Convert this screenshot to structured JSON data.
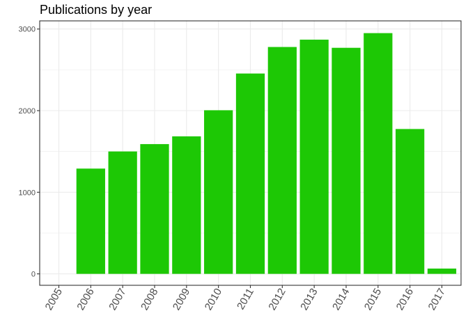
{
  "chart_data": {
    "type": "bar",
    "title": "Publications by year",
    "xlabel": "",
    "ylabel": "",
    "categories": [
      "2005",
      "2006",
      "2007",
      "2008",
      "2009",
      "2010",
      "2011",
      "2012",
      "2013",
      "2014",
      "2015",
      "2016",
      "2017"
    ],
    "values": [
      0,
      1290,
      1500,
      1590,
      1685,
      2005,
      2455,
      2780,
      2870,
      2770,
      2950,
      1775,
      65
    ],
    "ylim": [
      -140,
      3100
    ],
    "yticks": [
      0,
      1000,
      2000,
      3000
    ],
    "grid": true,
    "legend": "none",
    "bar_color": "#1DC805",
    "panel_border_color": "#333333",
    "grid_color": "#ebebeb"
  }
}
